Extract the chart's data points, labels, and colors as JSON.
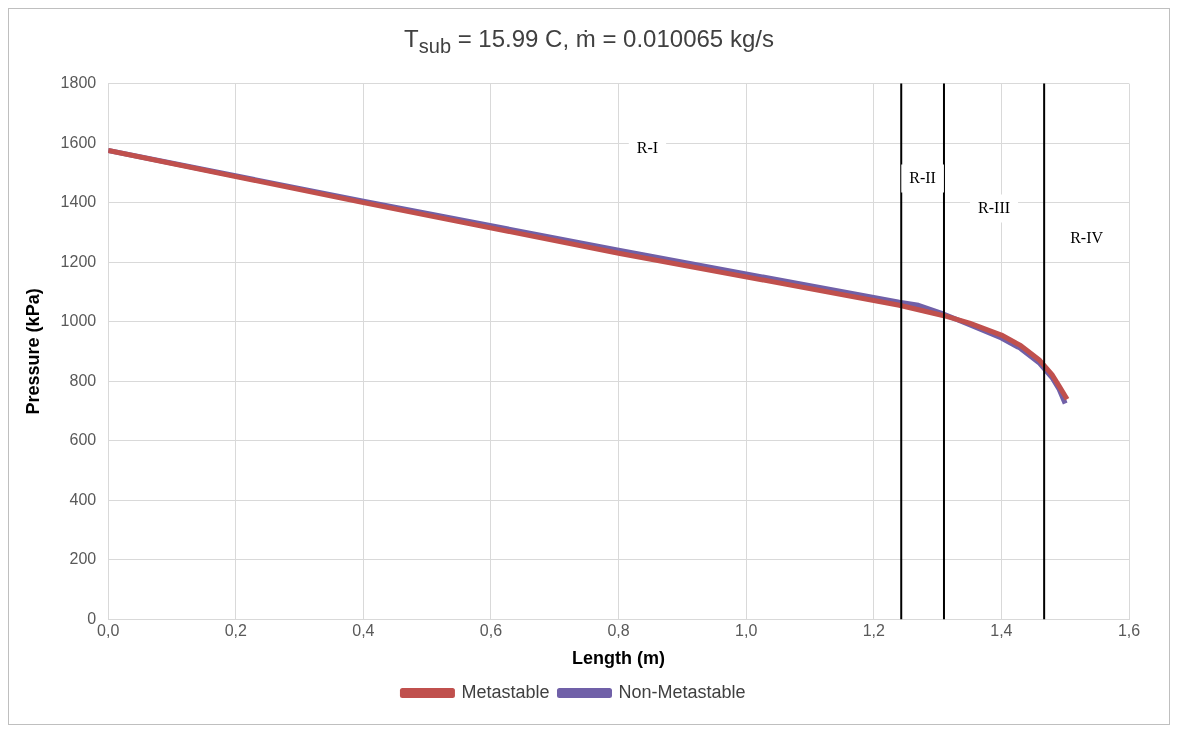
{
  "chart_data": {
    "type": "line",
    "title": "T$_{sub}$ = 15.99 C,  ṁ = 0.010065   kg/s",
    "xlabel": "Length (m)",
    "ylabel": "Pressure (kPa)",
    "xlim": [
      0,
      1.6
    ],
    "xticks": [
      {
        "value": 0,
        "label": "0,0"
      },
      {
        "value": 0.2,
        "label": "0,2"
      },
      {
        "value": 0.4,
        "label": "0,4"
      },
      {
        "value": 0.6,
        "label": "0,6"
      },
      {
        "value": 0.8,
        "label": "0,8"
      },
      {
        "value": 1,
        "label": "1,0"
      },
      {
        "value": 1.2,
        "label": "1,2"
      },
      {
        "value": 1.4,
        "label": "1,4"
      },
      {
        "value": 1.6,
        "label": "1,6"
      }
    ],
    "ylim": [
      0,
      1800
    ],
    "yticks": [
      0,
      200,
      400,
      600,
      800,
      1000,
      1200,
      1400,
      1600,
      1800
    ],
    "grid": true,
    "legend": "bottom",
    "series": [
      {
        "name": "Non-Metastable",
        "color": "#7060a8",
        "x": [
          0,
          0.4,
          0.8,
          1.24,
          1.27,
          1.31,
          1.35,
          1.4,
          1.43,
          1.46,
          1.48,
          1.49,
          1.5
        ],
        "values": [
          1575,
          1405,
          1240,
          1065,
          1055,
          1025,
          990,
          945,
          910,
          860,
          810,
          775,
          725
        ]
      },
      {
        "name": "Metastable",
        "color": "#c0504d",
        "x": [
          0,
          0.4,
          0.8,
          1.24,
          1.31,
          1.35,
          1.4,
          1.43,
          1.46,
          1.48,
          1.49,
          1.503
        ],
        "values": [
          1575,
          1400,
          1230,
          1055,
          1020,
          995,
          955,
          920,
          870,
          820,
          785,
          739
        ]
      }
    ],
    "ref_lines": [
      {
        "axis": "x",
        "value": 1.243,
        "color": "#000000"
      },
      {
        "axis": "x",
        "value": 1.31,
        "color": "#000000"
      },
      {
        "axis": "x",
        "value": 1.467,
        "color": "#000000"
      }
    ],
    "annotations": [
      "R-I",
      "R-II",
      "R-III",
      "R-IV"
    ]
  }
}
